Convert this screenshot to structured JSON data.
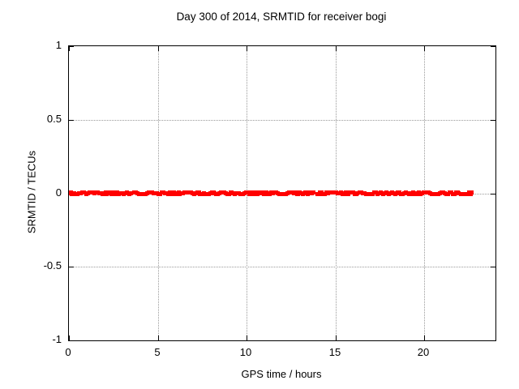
{
  "title": "Day 300 of 2014, SRMTID for receiver bogi",
  "colors": {
    "background": "#ffffff",
    "border": "#000000",
    "grid": "#9a9a9a",
    "text": "#000000",
    "series": "#ff0000"
  },
  "chart_data": {
    "type": "scatter",
    "title": "Day 300 of 2014, SRMTID for receiver bogi",
    "xlabel": "GPS time / hours",
    "ylabel": "SRMTID / TECUs",
    "xlim": [
      0,
      24
    ],
    "ylim": [
      -1,
      1
    ],
    "x_ticks": [
      0,
      5,
      10,
      15,
      20
    ],
    "y_ticks": [
      -1,
      -0.5,
      0,
      0.5,
      1
    ],
    "grid": true,
    "legend_position": "none",
    "series": [
      {
        "name": "SRMTID",
        "color": "#ff0000",
        "marker": "filled-square",
        "y_value": 0,
        "y_spread": 0.015,
        "x_start": 0,
        "x_end": 22.65,
        "x_segments": [
          [
            0.0,
            0.15
          ],
          [
            0.26,
            0.44
          ],
          [
            0.55,
            0.84
          ],
          [
            0.96,
            1.41
          ],
          [
            1.51,
            1.79
          ],
          [
            1.88,
            2.27
          ],
          [
            2.39,
            2.86
          ],
          [
            2.98,
            3.48
          ],
          [
            3.66,
            4.11
          ],
          [
            4.21,
            4.75
          ],
          [
            4.82,
            5.11
          ],
          [
            5.19,
            5.55
          ],
          [
            5.66,
            6.3
          ],
          [
            6.39,
            6.85
          ],
          [
            6.94,
            7.45
          ],
          [
            7.56,
            8.1
          ],
          [
            8.18,
            8.62
          ],
          [
            8.72,
            9.4
          ],
          [
            9.52,
            10.05
          ],
          [
            10.12,
            10.68
          ],
          [
            10.78,
            11.35
          ],
          [
            11.45,
            11.98
          ],
          [
            12.08,
            12.62
          ],
          [
            12.72,
            13.3
          ],
          [
            13.42,
            13.72
          ],
          [
            13.95,
            14.45
          ],
          [
            14.55,
            15.1
          ],
          [
            15.22,
            15.78
          ],
          [
            15.88,
            16.22
          ],
          [
            16.35,
            16.9
          ],
          [
            17.0,
            17.5
          ],
          [
            17.66,
            18.25
          ],
          [
            18.33,
            19.1
          ],
          [
            19.2,
            19.93
          ],
          [
            20.03,
            20.48
          ],
          [
            20.58,
            21.2
          ],
          [
            21.33,
            21.92
          ],
          [
            22.06,
            22.44
          ],
          [
            22.5,
            22.65
          ]
        ]
      }
    ]
  }
}
